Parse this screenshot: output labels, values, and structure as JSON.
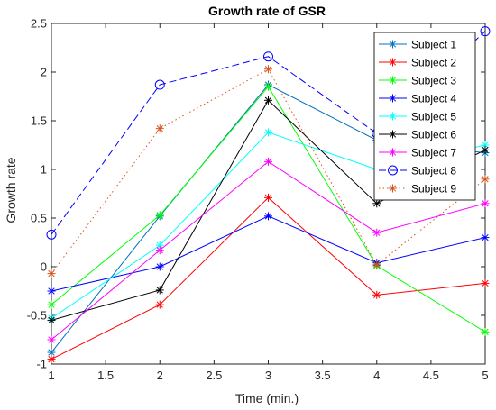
{
  "chart_data": {
    "type": "line",
    "title": "Growth rate of GSR",
    "xlabel": "Time (min.)",
    "ylabel": "Growth rate",
    "x": [
      1,
      2,
      3,
      4,
      5
    ],
    "xlim": [
      1,
      5
    ],
    "ylim": [
      -1,
      2.5
    ],
    "xticks": [
      1,
      1.5,
      2,
      2.5,
      3,
      3.5,
      4,
      4.5,
      5
    ],
    "xtick_labels": [
      "1",
      "1.5",
      "2",
      "2.5",
      "3",
      "3.5",
      "4",
      "4.5",
      "5"
    ],
    "yticks": [
      -1,
      -0.5,
      0,
      0.5,
      1,
      1.5,
      2,
      2.5
    ],
    "ytick_labels": [
      "-1",
      "-0.5",
      "0",
      "0.5",
      "1",
      "1.5",
      "2",
      "2.5"
    ],
    "grid": false,
    "legend_position": "top-right",
    "series": [
      {
        "name": "Subject 1",
        "color": "#0072BD",
        "marker": "asterisk",
        "dash": "solid",
        "values": [
          -0.88,
          0.52,
          1.87,
          1.3,
          1.17
        ]
      },
      {
        "name": "Subject 2",
        "color": "#FF0000",
        "marker": "asterisk",
        "dash": "solid",
        "values": [
          -0.95,
          -0.39,
          0.71,
          -0.29,
          -0.17
        ]
      },
      {
        "name": "Subject 3",
        "color": "#00FF00",
        "marker": "asterisk",
        "dash": "solid",
        "values": [
          -0.39,
          0.53,
          1.85,
          0.01,
          -0.67
        ]
      },
      {
        "name": "Subject 4",
        "color": "#0000FF",
        "marker": "asterisk",
        "dash": "solid",
        "values": [
          -0.25,
          0.0,
          0.52,
          0.04,
          0.3
        ]
      },
      {
        "name": "Subject 5",
        "color": "#00FFFF",
        "marker": "asterisk",
        "dash": "solid",
        "values": [
          -0.53,
          0.22,
          1.38,
          1.0,
          1.25
        ]
      },
      {
        "name": "Subject 6",
        "color": "#000000",
        "marker": "asterisk",
        "dash": "solid",
        "values": [
          -0.55,
          -0.24,
          1.71,
          0.65,
          1.2
        ]
      },
      {
        "name": "Subject 7",
        "color": "#FF00FF",
        "marker": "asterisk",
        "dash": "solid",
        "values": [
          -0.75,
          0.17,
          1.08,
          0.35,
          0.65
        ]
      },
      {
        "name": "Subject 8",
        "color": "#0000FF",
        "marker": "circle",
        "dash": "dashed",
        "values": [
          0.33,
          1.87,
          2.16,
          1.37,
          2.42
        ]
      },
      {
        "name": "Subject 9",
        "color": "#D95319",
        "marker": "asterisk",
        "dash": "dotted",
        "values": [
          -0.07,
          1.42,
          2.03,
          0.02,
          0.9
        ]
      }
    ]
  }
}
